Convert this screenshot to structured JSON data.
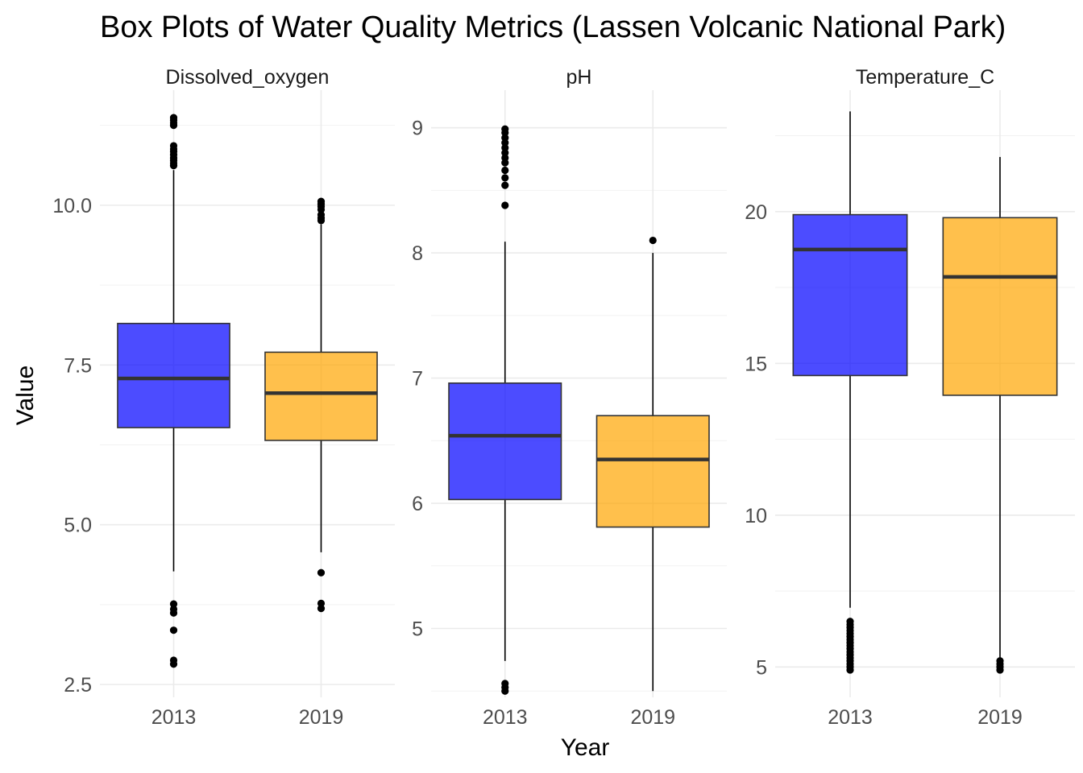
{
  "chart_data": {
    "type": "boxplot",
    "title": "Box Plots of Water Quality Metrics (Lassen Volcanic National Park)",
    "xlabel": "Year",
    "ylabel": "Value",
    "categories": [
      "2013",
      "2019"
    ],
    "colors": {
      "2013": "#0000ff",
      "2019": "#ffa500"
    },
    "fill_opacity": 0.7,
    "grid": true,
    "legend": "none",
    "facets": [
      {
        "name": "Dissolved_oxygen",
        "ylim": [
          2.3,
          11.8
        ],
        "yticks": [
          2.5,
          5.0,
          7.5,
          10.0
        ],
        "ytick_labels": [
          "2.5",
          "5.0",
          "7.5",
          "10.0"
        ],
        "boxes": [
          {
            "category": "2013",
            "whisker_low": 4.27,
            "q1": 6.52,
            "median": 7.29,
            "q3": 8.15,
            "whisker_high": 10.55,
            "outliers": [
              2.82,
              2.88,
              3.35,
              3.62,
              3.68,
              3.76,
              10.62,
              10.66,
              10.7,
              10.74,
              10.79,
              10.84,
              10.88,
              10.93,
              11.25,
              11.29,
              11.33,
              11.37
            ]
          },
          {
            "category": "2019",
            "whisker_low": 4.57,
            "q1": 6.32,
            "median": 7.06,
            "q3": 7.7,
            "whisker_high": 9.7,
            "outliers": [
              3.69,
              3.77,
              4.25,
              9.76,
              9.8,
              9.85,
              9.93,
              9.98,
              10.02,
              10.06
            ]
          }
        ]
      },
      {
        "name": "pH",
        "ylim": [
          4.45,
          9.3
        ],
        "yticks": [
          5,
          6,
          7,
          8,
          9
        ],
        "ytick_labels": [
          "5",
          "6",
          "7",
          "8",
          "9"
        ],
        "boxes": [
          {
            "category": "2013",
            "whisker_low": 4.74,
            "q1": 6.03,
            "median": 6.54,
            "q3": 6.96,
            "whisker_high": 8.09,
            "outliers": [
              4.5,
              4.53,
              4.56,
              8.38,
              8.54,
              8.6,
              8.66,
              8.72,
              8.76,
              8.8,
              8.84,
              8.88,
              8.92,
              8.96,
              8.99
            ]
          },
          {
            "category": "2019",
            "whisker_low": 4.5,
            "q1": 5.81,
            "median": 6.35,
            "q3": 6.7,
            "whisker_high": 8.0,
            "outliers": [
              8.1
            ]
          }
        ]
      },
      {
        "name": "Temperature_C",
        "ylim": [
          4.0,
          24.0
        ],
        "yticks": [
          5,
          10,
          15,
          20
        ],
        "ytick_labels": [
          "5",
          "10",
          "15",
          "20"
        ],
        "boxes": [
          {
            "category": "2013",
            "whisker_low": 6.95,
            "q1": 14.6,
            "median": 18.75,
            "q3": 19.9,
            "whisker_high": 23.3,
            "outliers": [
              4.9,
              5.0,
              5.1,
              5.2,
              5.3,
              5.4,
              5.5,
              5.6,
              5.7,
              5.8,
              5.9,
              6.0,
              6.1,
              6.2,
              6.3,
              6.4,
              6.5
            ]
          },
          {
            "category": "2019",
            "whisker_low": 5.25,
            "q1": 13.95,
            "median": 17.85,
            "q3": 19.8,
            "whisker_high": 21.8,
            "outliers": [
              4.9,
              5.0,
              5.1,
              5.2
            ]
          }
        ]
      }
    ]
  }
}
